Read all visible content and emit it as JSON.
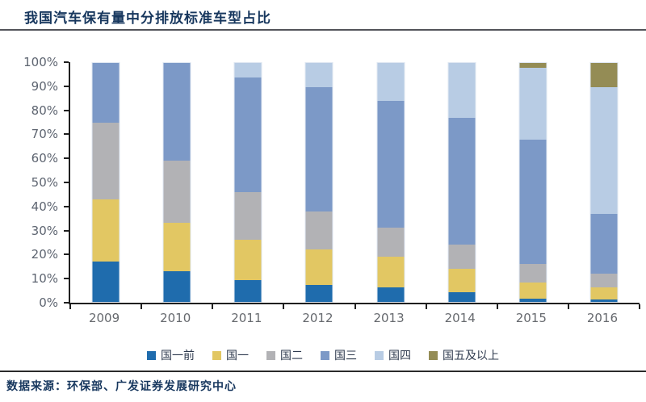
{
  "header": {
    "title": "我国汽车保有量中分排放标准车型占比"
  },
  "footer": {
    "source": "数据来源：环保部、广发证券发展研究中心"
  },
  "chart_data": {
    "type": "bar",
    "stacked": true,
    "unit": "percent",
    "title": "我国汽车保有量中分排放标准车型占比",
    "categories": [
      "2009",
      "2010",
      "2011",
      "2012",
      "2013",
      "2014",
      "2015",
      "2016"
    ],
    "series": [
      {
        "name": "国一前",
        "color": "#1F6CAD",
        "values": [
          17,
          13,
          9,
          7,
          6,
          4,
          1.5,
          1
        ]
      },
      {
        "name": "国一",
        "color": "#E2C763",
        "values": [
          26,
          20,
          17,
          15,
          13,
          10,
          6.5,
          5
        ]
      },
      {
        "name": "国二",
        "color": "#B2B2B5",
        "values": [
          32,
          26,
          20,
          16,
          12,
          10,
          8,
          6
        ]
      },
      {
        "name": "国三",
        "color": "#7C99C7",
        "values": [
          25,
          41,
          48,
          52,
          53,
          53,
          52,
          25
        ]
      },
      {
        "name": "国四",
        "color": "#B8CCE4",
        "values": [
          0,
          0,
          6,
          10,
          16,
          23,
          30,
          53
        ]
      },
      {
        "name": "国五及以上",
        "color": "#948C55",
        "values": [
          0,
          0,
          0,
          0,
          0,
          0,
          2,
          10
        ]
      }
    ],
    "y_ticks": [
      "100%",
      "90%",
      "80%",
      "70%",
      "60%",
      "50%",
      "40%",
      "30%",
      "20%",
      "10%",
      "0%"
    ],
    "ylim": [
      0,
      100
    ],
    "grid": false,
    "legend_position": "bottom"
  }
}
